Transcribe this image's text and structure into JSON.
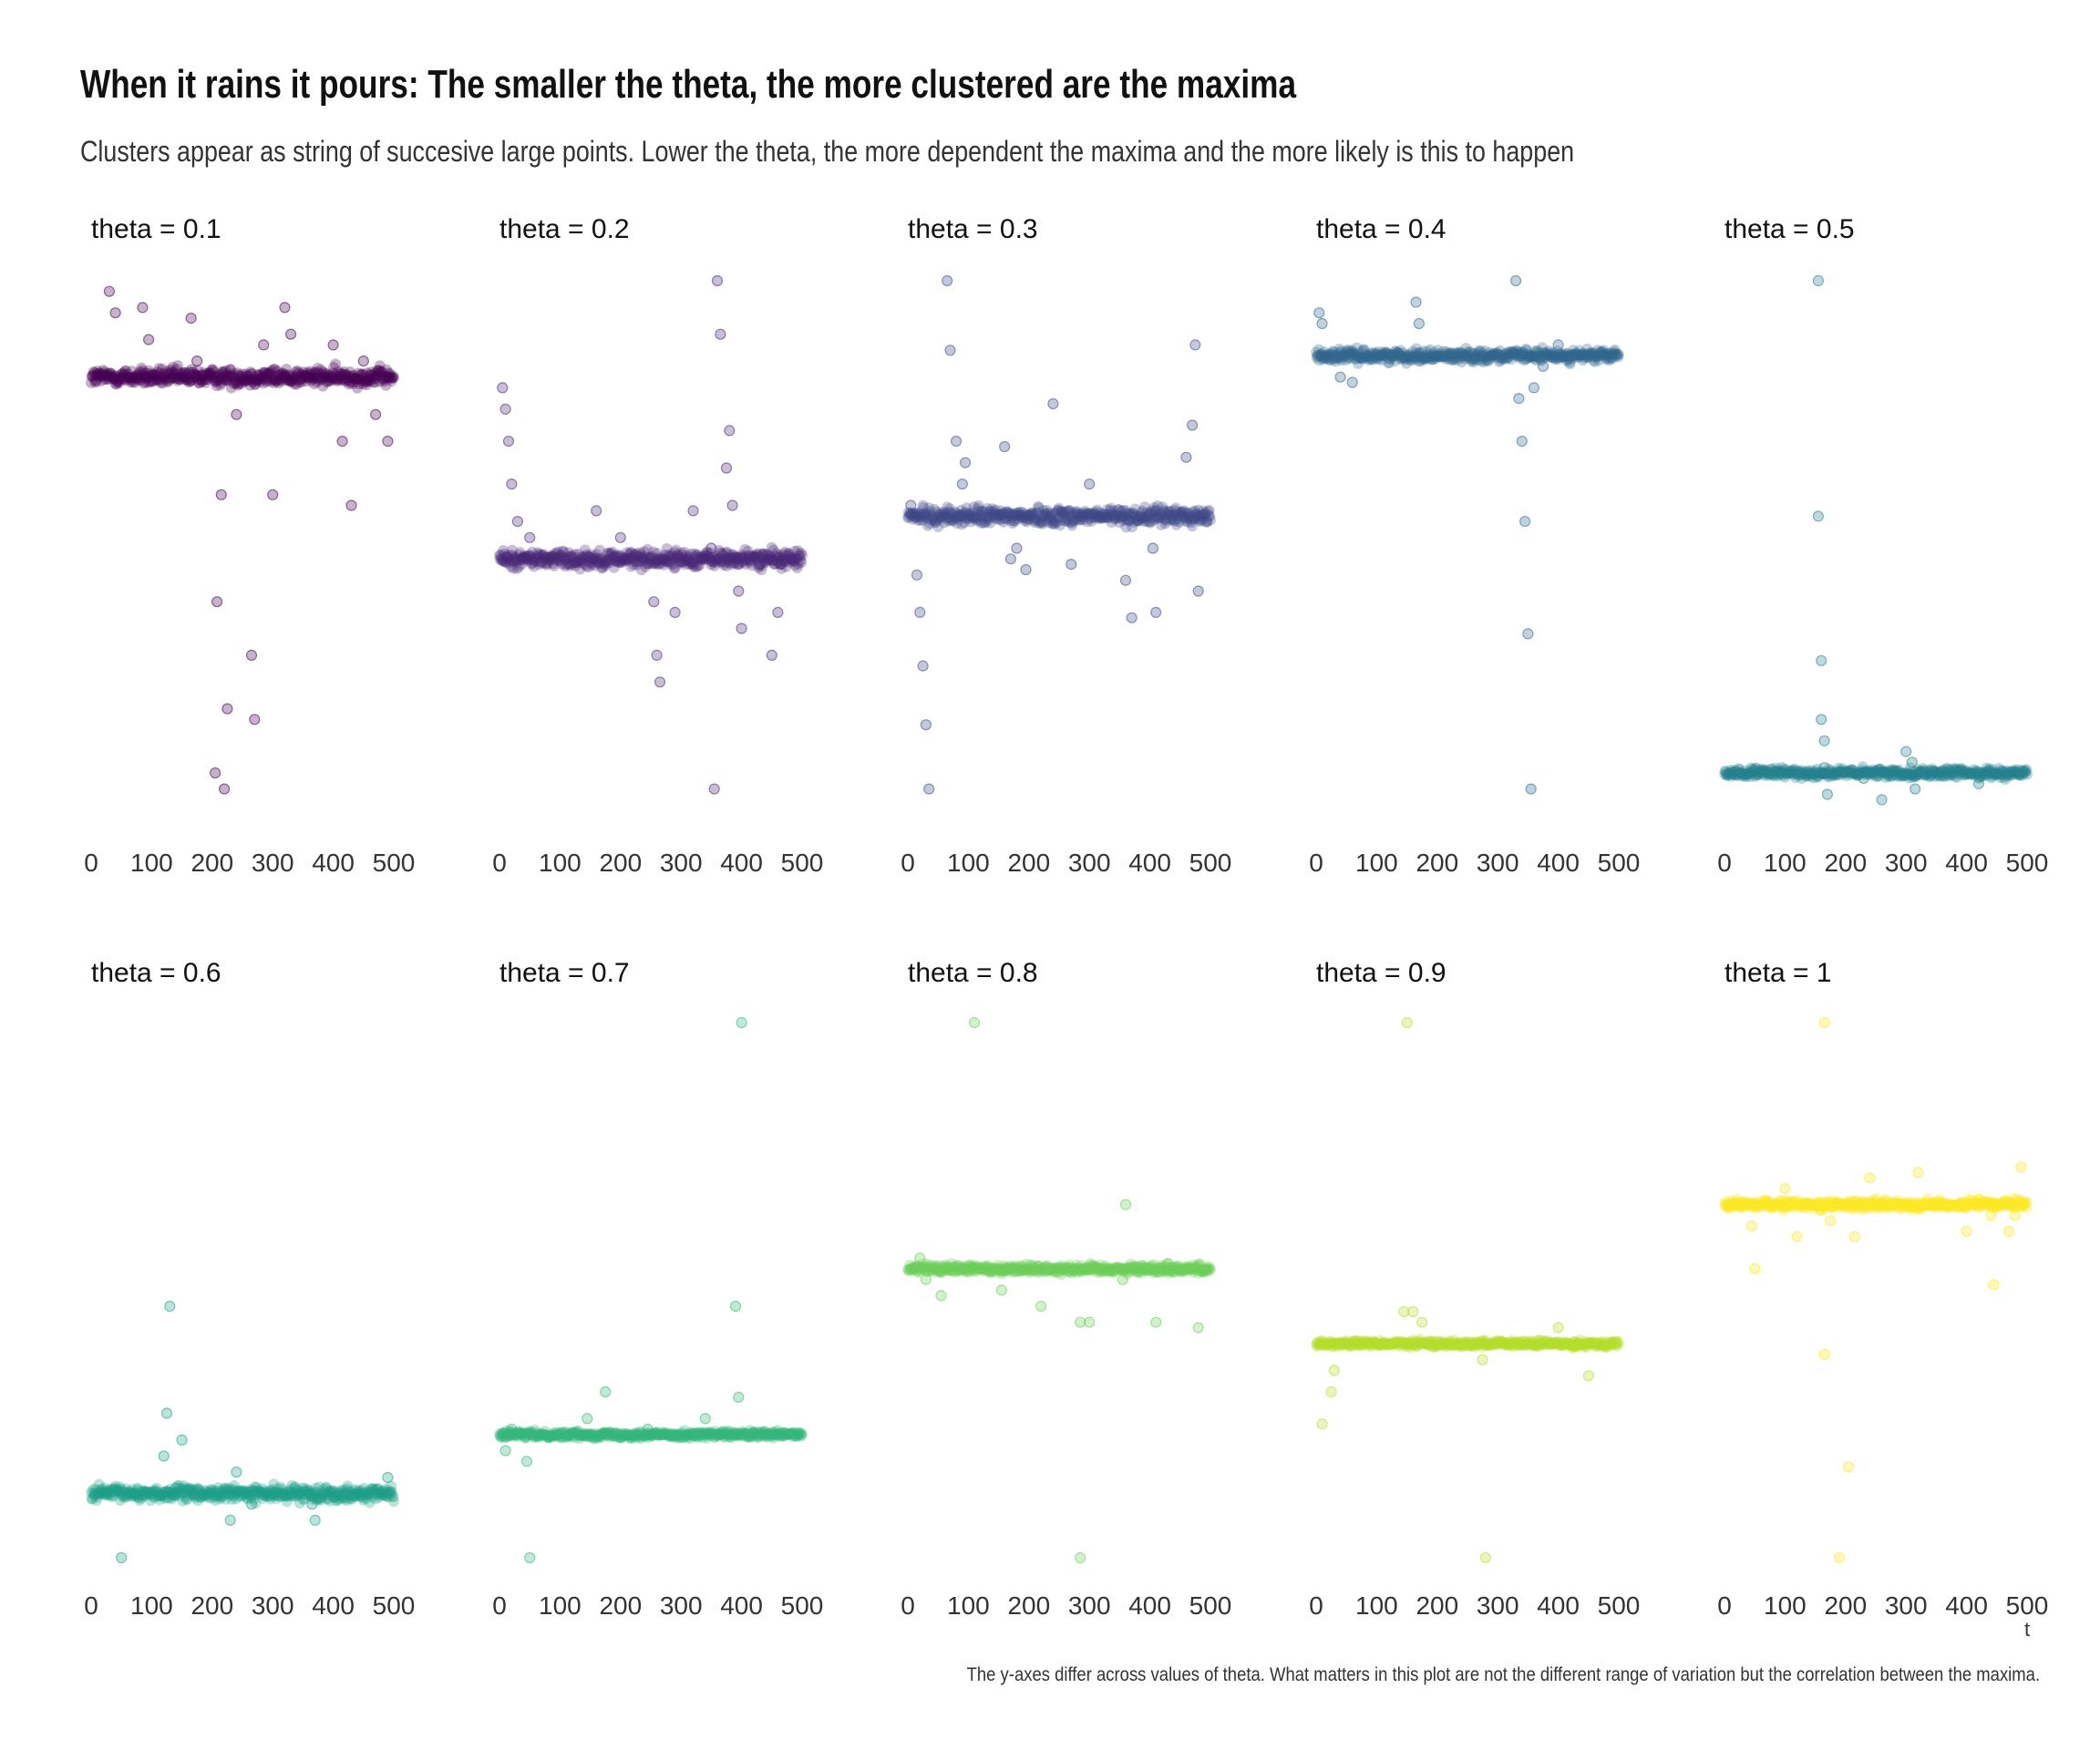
{
  "title": "When it rains it pours: The smaller the theta, the more clustered are the maxima",
  "subtitle": "Clusters appear as string of succesive large points. Lower the theta, the more dependent the maxima and the more likely is this to happen",
  "caption": "The y-axes differ across values of theta. What matters in this plot are not the different range of variation but the correlation between the maxima.",
  "chart_data": {
    "type": "scatter",
    "layout": "facets",
    "facet_rows": 2,
    "facet_cols": 5,
    "shared_x": true,
    "shared_y": false,
    "y_axis_shown": false,
    "grid": false,
    "xlabel": "t",
    "xlim": [
      0,
      500
    ],
    "xticks": [
      0,
      100,
      200,
      300,
      400,
      500
    ],
    "n_points": 500,
    "point_alpha": 0.3,
    "facets": [
      {
        "label": "theta = 0.1",
        "theta": 0.1,
        "color": "#440154",
        "ylim": [
          0,
          100
        ],
        "baseline": 82,
        "noise": 1.5,
        "outliers": [
          [
            30,
            98
          ],
          [
            40,
            94
          ],
          [
            85,
            95
          ],
          [
            95,
            89
          ],
          [
            165,
            93
          ],
          [
            175,
            85
          ],
          [
            205,
            8
          ],
          [
            208,
            40
          ],
          [
            215,
            60
          ],
          [
            220,
            5
          ],
          [
            225,
            20
          ],
          [
            240,
            75
          ],
          [
            265,
            30
          ],
          [
            270,
            18
          ],
          [
            285,
            88
          ],
          [
            300,
            60
          ],
          [
            320,
            95
          ],
          [
            330,
            90
          ],
          [
            400,
            88
          ],
          [
            415,
            70
          ],
          [
            430,
            58
          ],
          [
            450,
            85
          ],
          [
            470,
            75
          ],
          [
            490,
            70
          ]
        ]
      },
      {
        "label": "theta = 0.2",
        "theta": 0.2,
        "color": "#482878",
        "ylim": [
          0,
          100
        ],
        "baseline": 48,
        "noise": 1.5,
        "outliers": [
          [
            5,
            80
          ],
          [
            10,
            76
          ],
          [
            15,
            70
          ],
          [
            20,
            62
          ],
          [
            30,
            55
          ],
          [
            50,
            52
          ],
          [
            160,
            57
          ],
          [
            200,
            52
          ],
          [
            255,
            40
          ],
          [
            260,
            30
          ],
          [
            265,
            25
          ],
          [
            290,
            38
          ],
          [
            320,
            57
          ],
          [
            350,
            50
          ],
          [
            355,
            5
          ],
          [
            360,
            100
          ],
          [
            365,
            90
          ],
          [
            375,
            65
          ],
          [
            380,
            72
          ],
          [
            385,
            58
          ],
          [
            395,
            42
          ],
          [
            400,
            35
          ],
          [
            430,
            47
          ],
          [
            450,
            30
          ],
          [
            460,
            38
          ],
          [
            465,
            47
          ]
        ]
      },
      {
        "label": "theta = 0.3",
        "theta": 0.3,
        "color": "#3E4A89",
        "ylim": [
          0,
          100
        ],
        "baseline": 56,
        "noise": 1.5,
        "outliers": [
          [
            5,
            58
          ],
          [
            15,
            45
          ],
          [
            20,
            38
          ],
          [
            25,
            28
          ],
          [
            30,
            17
          ],
          [
            35,
            5
          ],
          [
            65,
            100
          ],
          [
            70,
            87
          ],
          [
            80,
            70
          ],
          [
            90,
            62
          ],
          [
            95,
            66
          ],
          [
            160,
            69
          ],
          [
            170,
            48
          ],
          [
            180,
            50
          ],
          [
            195,
            46
          ],
          [
            240,
            77
          ],
          [
            270,
            47
          ],
          [
            300,
            62
          ],
          [
            360,
            44
          ],
          [
            370,
            37
          ],
          [
            405,
            50
          ],
          [
            410,
            38
          ],
          [
            460,
            67
          ],
          [
            470,
            73
          ],
          [
            475,
            88
          ],
          [
            480,
            42
          ]
        ]
      },
      {
        "label": "theta = 0.4",
        "theta": 0.4,
        "color": "#31688E",
        "ylim": [
          0,
          100
        ],
        "baseline": 86,
        "noise": 1,
        "outliers": [
          [
            5,
            94
          ],
          [
            10,
            92
          ],
          [
            40,
            82
          ],
          [
            60,
            81
          ],
          [
            165,
            96
          ],
          [
            170,
            92
          ],
          [
            330,
            100
          ],
          [
            335,
            78
          ],
          [
            340,
            70
          ],
          [
            345,
            55
          ],
          [
            350,
            34
          ],
          [
            355,
            5
          ],
          [
            360,
            80
          ],
          [
            375,
            84
          ],
          [
            400,
            88
          ],
          [
            420,
            86
          ]
        ]
      },
      {
        "label": "theta = 0.5",
        "theta": 0.5,
        "color": "#26828E",
        "ylim": [
          0,
          100
        ],
        "baseline": 8,
        "noise": 0.8,
        "outliers": [
          [
            155,
            100
          ],
          [
            155,
            56
          ],
          [
            160,
            29
          ],
          [
            160,
            18
          ],
          [
            165,
            14
          ],
          [
            165,
            9
          ],
          [
            170,
            4
          ],
          [
            230,
            7
          ],
          [
            260,
            3
          ],
          [
            300,
            12
          ],
          [
            310,
            10
          ],
          [
            315,
            5
          ],
          [
            420,
            6
          ],
          [
            440,
            8
          ]
        ]
      },
      {
        "label": "theta = 0.6",
        "theta": 0.6,
        "color": "#1F9E89",
        "ylim": [
          0,
          100
        ],
        "baseline": 12,
        "noise": 1.2,
        "outliers": [
          [
            50,
            0
          ],
          [
            120,
            19
          ],
          [
            125,
            27
          ],
          [
            130,
            47
          ],
          [
            140,
            13
          ],
          [
            150,
            22
          ],
          [
            170,
            12
          ],
          [
            230,
            7
          ],
          [
            240,
            16
          ],
          [
            265,
            10
          ],
          [
            270,
            12
          ],
          [
            300,
            12
          ],
          [
            365,
            10
          ],
          [
            370,
            7
          ],
          [
            490,
            15
          ]
        ]
      },
      {
        "label": "theta = 0.7",
        "theta": 0.7,
        "color": "#35B779",
        "ylim": [
          0,
          100
        ],
        "baseline": 23,
        "noise": 0.6,
        "outliers": [
          [
            10,
            20
          ],
          [
            20,
            24
          ],
          [
            45,
            18
          ],
          [
            50,
            0
          ],
          [
            145,
            26
          ],
          [
            175,
            31
          ],
          [
            245,
            24
          ],
          [
            340,
            26
          ],
          [
            395,
            30
          ],
          [
            390,
            47
          ],
          [
            400,
            100
          ]
        ]
      },
      {
        "label": "theta = 0.8",
        "theta": 0.8,
        "color": "#6DCD59",
        "ylim": [
          0,
          100
        ],
        "baseline": 54,
        "noise": 0.8,
        "outliers": [
          [
            20,
            56
          ],
          [
            30,
            52
          ],
          [
            55,
            49
          ],
          [
            110,
            100
          ],
          [
            155,
            50
          ],
          [
            165,
            54
          ],
          [
            220,
            47
          ],
          [
            285,
            0
          ],
          [
            285,
            44
          ],
          [
            300,
            44
          ],
          [
            355,
            52
          ],
          [
            360,
            66
          ],
          [
            410,
            44
          ],
          [
            430,
            55
          ],
          [
            480,
            43
          ]
        ]
      },
      {
        "label": "theta = 0.9",
        "theta": 0.9,
        "color": "#B4DE2C",
        "ylim": [
          0,
          100
        ],
        "baseline": 40,
        "noise": 0.6,
        "outliers": [
          [
            10,
            25
          ],
          [
            25,
            31
          ],
          [
            30,
            35
          ],
          [
            150,
            100
          ],
          [
            145,
            46
          ],
          [
            160,
            46
          ],
          [
            175,
            44
          ],
          [
            275,
            37
          ],
          [
            280,
            0
          ],
          [
            400,
            43
          ],
          [
            430,
            40
          ],
          [
            450,
            34
          ]
        ]
      },
      {
        "label": "theta = 1",
        "theta": 1.0,
        "color": "#FDE725",
        "ylim": [
          0,
          100
        ],
        "baseline": 66,
        "noise": 0.8,
        "outliers": [
          [
            45,
            62
          ],
          [
            50,
            54
          ],
          [
            100,
            69
          ],
          [
            120,
            60
          ],
          [
            165,
            100
          ],
          [
            160,
            65
          ],
          [
            165,
            38
          ],
          [
            175,
            63
          ],
          [
            190,
            0
          ],
          [
            205,
            17
          ],
          [
            215,
            60
          ],
          [
            240,
            71
          ],
          [
            320,
            72
          ],
          [
            350,
            66
          ],
          [
            400,
            61
          ],
          [
            420,
            67
          ],
          [
            440,
            64
          ],
          [
            445,
            51
          ],
          [
            470,
            61
          ],
          [
            480,
            64
          ],
          [
            490,
            73
          ]
        ]
      }
    ]
  }
}
